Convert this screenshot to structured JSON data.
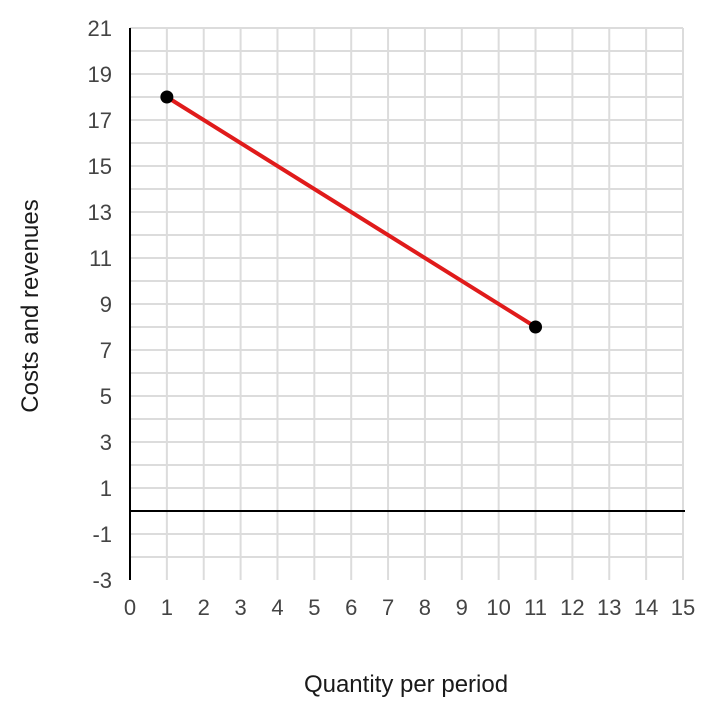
{
  "chart_data": {
    "type": "line",
    "title": "",
    "xlabel": "Quantity per period",
    "ylabel": "Costs and revenues",
    "xlim": [
      0,
      15
    ],
    "ylim": [
      -3,
      21
    ],
    "x_ticks": [
      0,
      1,
      2,
      3,
      4,
      5,
      6,
      7,
      8,
      9,
      10,
      11,
      12,
      13,
      14,
      15
    ],
    "y_ticks": [
      21,
      19,
      17,
      15,
      13,
      11,
      9,
      7,
      5,
      3,
      1,
      -1,
      -3
    ],
    "minor_grid_step": 1,
    "grid": true,
    "legend": "none",
    "series": [
      {
        "x": [
          1,
          11
        ],
        "y": [
          18,
          8
        ],
        "color": "#e01b1b",
        "marker_color": "#000000"
      }
    ]
  }
}
